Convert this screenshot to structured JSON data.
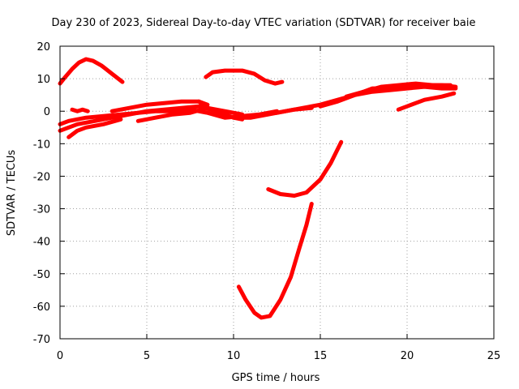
{
  "chart_data": {
    "type": "line",
    "title": "Day 230 of 2023, Sidereal Day-to-day VTEC variation (SDTVAR) for receiver baie",
    "xlabel": "GPS time / hours",
    "ylabel": "SDTVAR / TECUs",
    "xlim": [
      0,
      25
    ],
    "ylim": [
      -70,
      20
    ],
    "xticks": [
      0,
      5,
      10,
      15,
      20,
      25
    ],
    "yticks": [
      -70,
      -60,
      -50,
      -40,
      -30,
      -20,
      -10,
      0,
      10,
      20
    ],
    "x_tick_labels": [
      "0",
      "5",
      "10",
      "15",
      "20",
      "25"
    ],
    "y_tick_labels": [
      "-70",
      "-60",
      "-50",
      "-40",
      "-30",
      "-20",
      "-10",
      "0",
      "10",
      "20"
    ],
    "grid": true,
    "color": "#ff0000",
    "series": [
      {
        "name": "arc-1",
        "points": [
          [
            0.0,
            8.5
          ],
          [
            0.3,
            10.5
          ],
          [
            0.7,
            13
          ],
          [
            1.1,
            15
          ],
          [
            1.5,
            16
          ],
          [
            1.9,
            15.5
          ],
          [
            2.4,
            14
          ],
          [
            3.0,
            11.5
          ],
          [
            3.6,
            9
          ]
        ]
      },
      {
        "name": "arc-2",
        "points": [
          [
            0.0,
            -6
          ],
          [
            0.5,
            -5
          ],
          [
            1.0,
            -4
          ],
          [
            2.0,
            -3
          ],
          [
            3.0,
            -2
          ],
          [
            4.0,
            -1
          ],
          [
            5.0,
            0
          ],
          [
            6.0,
            0.5
          ],
          [
            7.0,
            1
          ],
          [
            8.0,
            1.5
          ],
          [
            9.0,
            0
          ],
          [
            10.0,
            -2
          ],
          [
            11.0,
            -2
          ],
          [
            12.0,
            -1
          ],
          [
            13.0,
            0
          ],
          [
            14.0,
            1
          ],
          [
            15.0,
            2
          ],
          [
            16.0,
            3.5
          ],
          [
            17.0,
            5
          ],
          [
            18.0,
            6
          ],
          [
            19.0,
            6.5
          ],
          [
            20.0,
            7
          ],
          [
            21.0,
            7.5
          ],
          [
            22.0,
            7
          ],
          [
            22.8,
            7
          ]
        ]
      },
      {
        "name": "arc-3",
        "points": [
          [
            0.0,
            -4
          ],
          [
            0.5,
            -3
          ],
          [
            1.5,
            -2
          ],
          [
            2.5,
            -1.5
          ],
          [
            3.5,
            -1
          ],
          [
            4.5,
            -0.5
          ],
          [
            5.5,
            0
          ],
          [
            6.5,
            0
          ],
          [
            7.5,
            0.5
          ],
          [
            8.5,
            -0.5
          ],
          [
            9.5,
            -2
          ],
          [
            10.5,
            -1.5
          ],
          [
            11.5,
            -1
          ],
          [
            12.5,
            0
          ]
        ]
      },
      {
        "name": "arc-4",
        "points": [
          [
            0.5,
            -8
          ],
          [
            1.0,
            -6
          ],
          [
            1.5,
            -5
          ],
          [
            2.5,
            -4
          ],
          [
            3.5,
            -2.5
          ]
        ]
      },
      {
        "name": "arc-5",
        "points": [
          [
            0.7,
            0.5
          ],
          [
            1.0,
            0
          ],
          [
            1.3,
            0.5
          ],
          [
            1.6,
            0
          ]
        ]
      },
      {
        "name": "arc-6",
        "points": [
          [
            3.0,
            0
          ],
          [
            4.0,
            1
          ],
          [
            5.0,
            2
          ],
          [
            6.0,
            2.5
          ],
          [
            7.0,
            3
          ],
          [
            8.0,
            3
          ],
          [
            8.5,
            2
          ]
        ]
      },
      {
        "name": "arc-7",
        "points": [
          [
            4.5,
            -3
          ],
          [
            5.5,
            -2
          ],
          [
            6.5,
            -1
          ],
          [
            7.5,
            -0.5
          ],
          [
            8.5,
            1
          ],
          [
            9.5,
            0
          ],
          [
            10.5,
            -1
          ]
        ]
      },
      {
        "name": "arc-8",
        "points": [
          [
            8.0,
            3
          ],
          [
            8.5,
            1
          ],
          [
            9.0,
            0
          ],
          [
            9.5,
            -1
          ],
          [
            10.0,
            -2
          ],
          [
            10.5,
            -2.5
          ]
        ]
      },
      {
        "name": "arc-9",
        "points": [
          [
            8.4,
            10.5
          ],
          [
            8.8,
            12
          ],
          [
            9.5,
            12.5
          ],
          [
            10.5,
            12.5
          ],
          [
            11.2,
            11.5
          ],
          [
            11.8,
            9.5
          ],
          [
            12.4,
            8.5
          ],
          [
            12.8,
            9
          ]
        ]
      },
      {
        "name": "arc-10",
        "points": [
          [
            12.5,
            -0.5
          ],
          [
            13.5,
            0.5
          ],
          [
            14.5,
            1
          ]
        ]
      },
      {
        "name": "arc-11",
        "points": [
          [
            15.0,
            1.5
          ],
          [
            16.0,
            3
          ],
          [
            17.0,
            5
          ],
          [
            18.0,
            7
          ],
          [
            19.0,
            7
          ],
          [
            20.0,
            7.5
          ],
          [
            21.0,
            8
          ],
          [
            22.0,
            8
          ],
          [
            22.8,
            7.5
          ]
        ]
      },
      {
        "name": "arc-12",
        "points": [
          [
            16.5,
            4.5
          ],
          [
            17.5,
            6
          ],
          [
            18.5,
            7.5
          ],
          [
            19.5,
            8
          ],
          [
            20.5,
            8.5
          ],
          [
            21.5,
            8
          ],
          [
            22.5,
            8
          ]
        ]
      },
      {
        "name": "arc-13",
        "points": [
          [
            19.5,
            0.5
          ],
          [
            20.0,
            1.5
          ],
          [
            20.5,
            2.5
          ],
          [
            21.0,
            3.5
          ],
          [
            21.5,
            4
          ],
          [
            22.0,
            4.5
          ],
          [
            22.7,
            5.5
          ]
        ]
      },
      {
        "name": "arc-14",
        "points": [
          [
            12.0,
            -24
          ],
          [
            12.7,
            -25.5
          ],
          [
            13.5,
            -26
          ],
          [
            14.2,
            -25
          ],
          [
            15.0,
            -21
          ],
          [
            15.6,
            -16
          ],
          [
            16.2,
            -9.5
          ]
        ]
      },
      {
        "name": "arc-15",
        "points": [
          [
            10.3,
            -54
          ],
          [
            10.7,
            -58
          ],
          [
            11.2,
            -62
          ],
          [
            11.6,
            -63.5
          ],
          [
            12.1,
            -63
          ],
          [
            12.7,
            -58
          ],
          [
            13.3,
            -51
          ],
          [
            13.8,
            -42
          ],
          [
            14.2,
            -35
          ],
          [
            14.5,
            -28.5
          ]
        ]
      }
    ]
  }
}
